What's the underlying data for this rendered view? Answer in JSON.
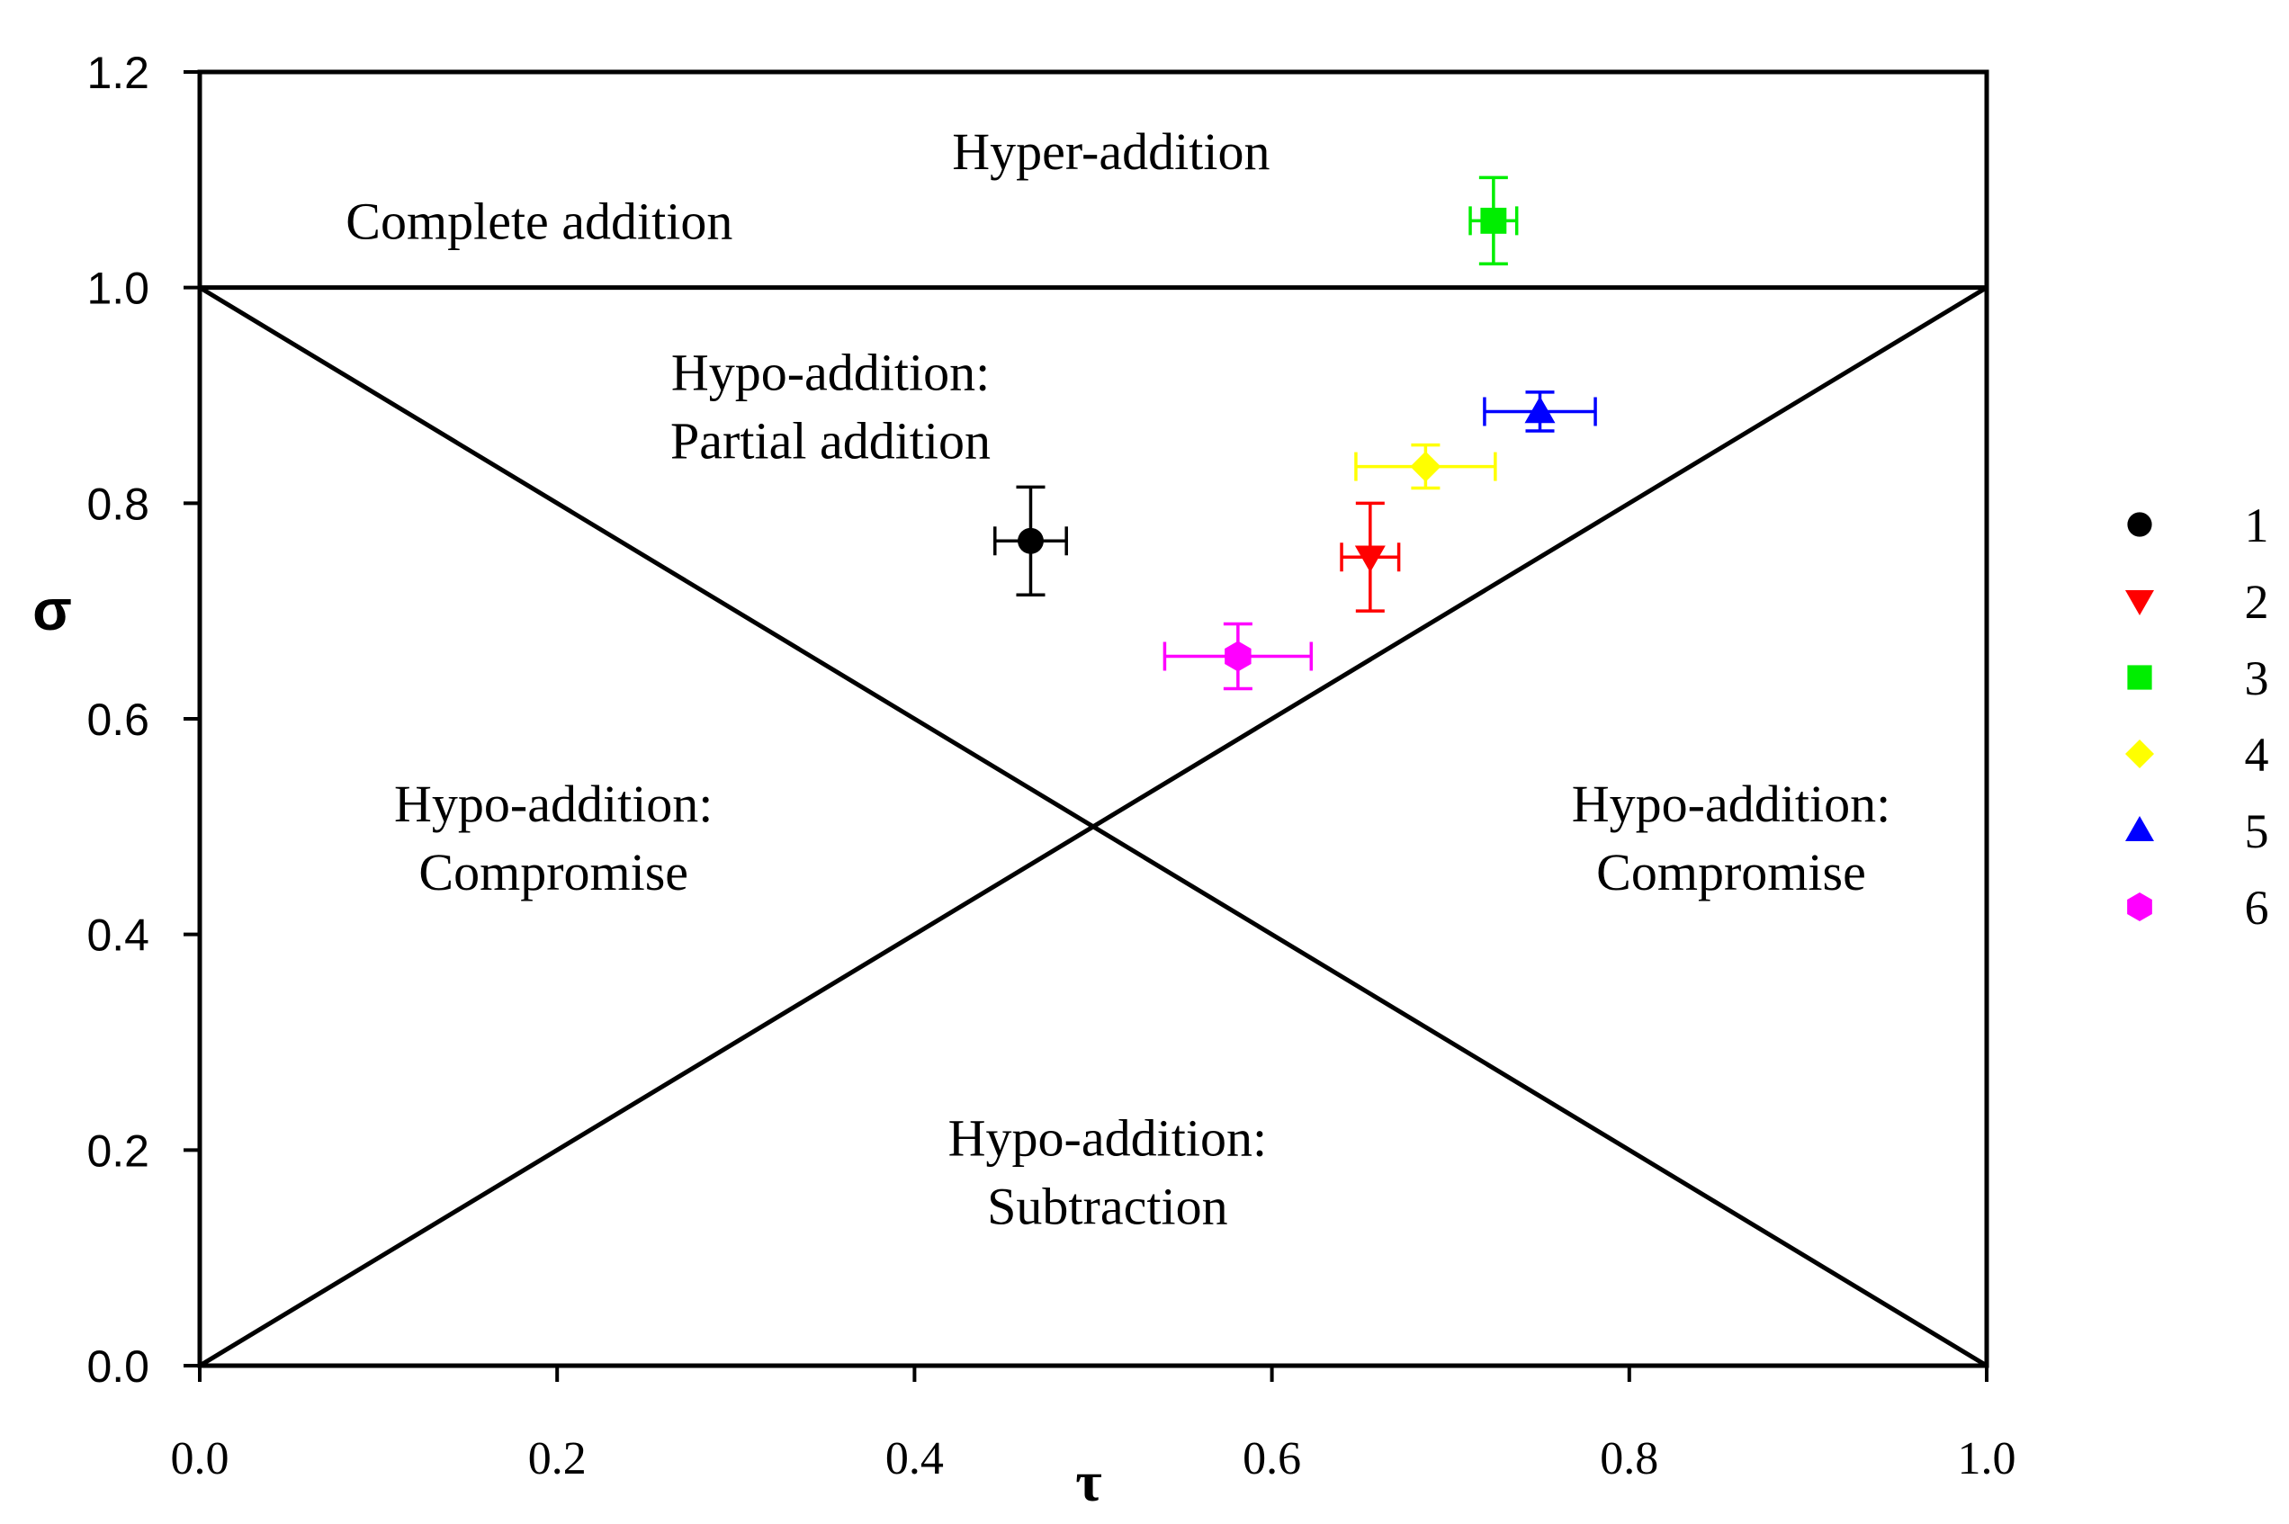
{
  "chart_data": {
    "type": "scatter",
    "xlabel": "τ",
    "ylabel": "σ",
    "xlim": [
      0.0,
      1.0
    ],
    "ylim": [
      0.0,
      1.2
    ],
    "x_ticks": [
      "0.0",
      "0.2",
      "0.4",
      "0.6",
      "0.8",
      "1.0"
    ],
    "y_ticks": [
      "0.0",
      "0.2",
      "0.4",
      "0.6",
      "0.8",
      "1.0",
      "1.2"
    ],
    "grid": false,
    "legend_position": "right",
    "reference_lines": [
      {
        "x": [
          0.0,
          1.0
        ],
        "y": [
          1.0,
          1.0
        ]
      },
      {
        "x": [
          0.0,
          1.0
        ],
        "y": [
          1.0,
          0.0
        ]
      },
      {
        "x": [
          0.0,
          1.0
        ],
        "y": [
          0.0,
          1.0
        ]
      }
    ],
    "region_labels": [
      {
        "lines": [
          "Hyper-addition"
        ],
        "x": 0.51,
        "y": 1.11
      },
      {
        "lines": [
          "Complete addition"
        ],
        "x": 0.19,
        "y": 1.045
      },
      {
        "lines": [
          "Hypo-addition:",
          "Partial addition"
        ],
        "x": 0.353,
        "y": 0.905
      },
      {
        "lines": [
          "Hypo-addition:",
          "Compromise"
        ],
        "x": 0.198,
        "y": 0.505
      },
      {
        "lines": [
          "Hypo-addition:",
          "Compromise"
        ],
        "x": 0.857,
        "y": 0.505
      },
      {
        "lines": [
          "Hypo-addition:",
          "Subtraction"
        ],
        "x": 0.508,
        "y": 0.195
      }
    ],
    "series": [
      {
        "name": "1",
        "marker": "circle",
        "color": "#000000",
        "x": 0.465,
        "y": 0.765,
        "xerr": 0.02,
        "yerr": 0.05
      },
      {
        "name": "2",
        "marker": "triangle-down",
        "color": "#ff0000",
        "x": 0.655,
        "y": 0.75,
        "xerr": 0.016,
        "yerr": 0.05
      },
      {
        "name": "3",
        "marker": "square",
        "color": "#00ee00",
        "x": 0.724,
        "y": 1.062,
        "xerr": 0.013,
        "yerr": 0.04
      },
      {
        "name": "4",
        "marker": "diamond",
        "color": "#ffff00",
        "x": 0.686,
        "y": 0.834,
        "xerr": 0.039,
        "yerr": 0.02
      },
      {
        "name": "5",
        "marker": "triangle-up",
        "color": "#0000ff",
        "x": 0.75,
        "y": 0.885,
        "xerr": 0.031,
        "yerr": 0.018
      },
      {
        "name": "6",
        "marker": "hexagon",
        "color": "#ff00ff",
        "x": 0.581,
        "y": 0.658,
        "xerr": 0.041,
        "yerr": 0.03
      }
    ]
  }
}
